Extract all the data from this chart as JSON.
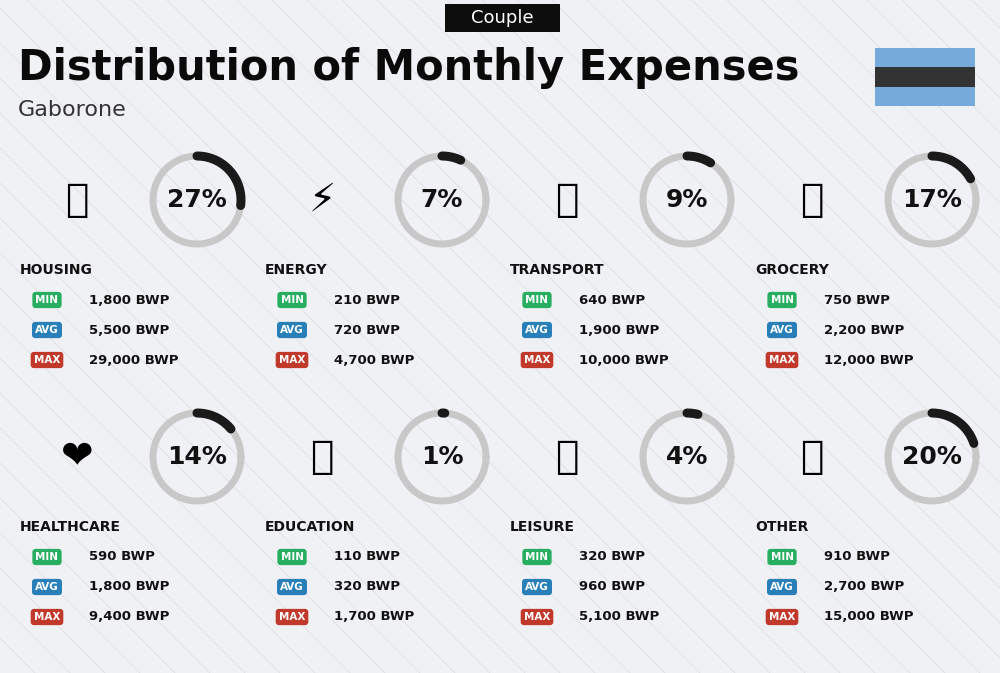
{
  "title": "Distribution of Monthly Expenses",
  "subtitle": "Gaborone",
  "badge": "Couple",
  "bg_color": "#f0f1f5",
  "categories": [
    {
      "name": "HOUSING",
      "pct": 27,
      "icon": "🏢",
      "min": "1,800 BWP",
      "avg": "5,500 BWP",
      "max": "29,000 BWP",
      "col": 0,
      "row": 0
    },
    {
      "name": "ENERGY",
      "pct": 7,
      "icon": "⚡",
      "min": "210 BWP",
      "avg": "720 BWP",
      "max": "4,700 BWP",
      "col": 1,
      "row": 0
    },
    {
      "name": "TRANSPORT",
      "pct": 9,
      "icon": "🚌",
      "min": "640 BWP",
      "avg": "1,900 BWP",
      "max": "10,000 BWP",
      "col": 2,
      "row": 0
    },
    {
      "name": "GROCERY",
      "pct": 17,
      "icon": "🛒",
      "min": "750 BWP",
      "avg": "2,200 BWP",
      "max": "12,000 BWP",
      "col": 3,
      "row": 0
    },
    {
      "name": "HEALTHCARE",
      "pct": 14,
      "icon": "❤️",
      "min": "590 BWP",
      "avg": "1,800 BWP",
      "max": "9,400 BWP",
      "col": 0,
      "row": 1
    },
    {
      "name": "EDUCATION",
      "pct": 1,
      "icon": "🎓",
      "min": "110 BWP",
      "avg": "320 BWP",
      "max": "1,700 BWP",
      "col": 1,
      "row": 1
    },
    {
      "name": "LEISURE",
      "pct": 4,
      "icon": "🛍",
      "min": "320 BWP",
      "avg": "960 BWP",
      "max": "5,100 BWP",
      "col": 2,
      "row": 1
    },
    {
      "name": "OTHER",
      "pct": 20,
      "icon": "👜",
      "min": "910 BWP",
      "avg": "2,700 BWP",
      "max": "15,000 BWP",
      "col": 3,
      "row": 1
    }
  ],
  "min_color": "#27ae60",
  "avg_color": "#2980b9",
  "max_color": "#c0392b",
  "arc_dark": "#1a1a1a",
  "arc_light": "#c8c8c8",
  "flag_colors": [
    "#75aadb",
    "#333333",
    "#75aadb"
  ],
  "title_fs": 30,
  "sub_fs": 16,
  "badge_fs": 13,
  "pct_fs": 18,
  "cat_fs": 10,
  "val_fs": 9.5,
  "lbl_fs": 7.5,
  "icon_fs": 28
}
